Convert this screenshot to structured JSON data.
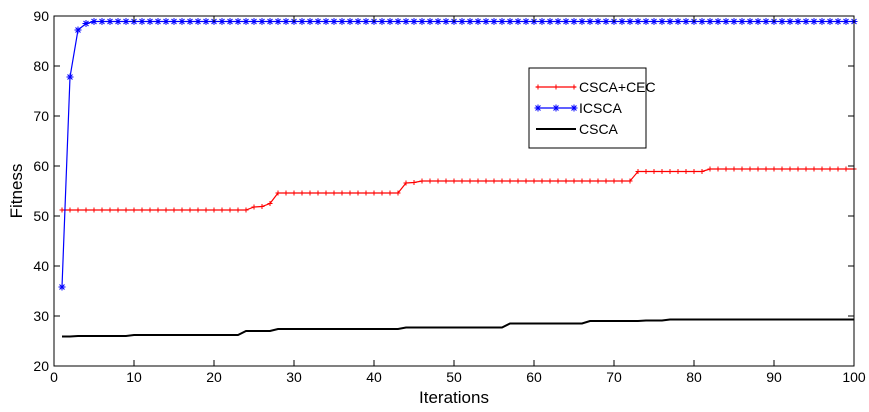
{
  "chart_data": {
    "type": "line",
    "title": "",
    "xlabel": "Iterations",
    "ylabel": "Fitness",
    "xlim": [
      0,
      100
    ],
    "ylim": [
      20,
      90
    ],
    "xticks": [
      "0",
      "10",
      "20",
      "30",
      "40",
      "50",
      "60",
      "70",
      "80",
      "90",
      "100"
    ],
    "yticks": [
      "20",
      "30",
      "40",
      "50",
      "60",
      "70",
      "80",
      "90"
    ],
    "grid": false,
    "legend_position": "top-right",
    "series": [
      {
        "name": "CSCA+CEC",
        "color": "#ff0000",
        "marker": "plus",
        "steps": [
          [
            1,
            51.2
          ],
          [
            24,
            51.2
          ],
          [
            25,
            51.8
          ],
          [
            26,
            51.9
          ],
          [
            27,
            52.5
          ],
          [
            28,
            54.6
          ],
          [
            43,
            54.6
          ],
          [
            44,
            56.6
          ],
          [
            45,
            56.7
          ],
          [
            46,
            57.0
          ],
          [
            72,
            57.0
          ],
          [
            73,
            58.9
          ],
          [
            81,
            58.9
          ],
          [
            82,
            59.4
          ],
          [
            100,
            59.4
          ]
        ]
      },
      {
        "name": "ICSCA",
        "color": "#0000ff",
        "marker": "star",
        "steps": [
          [
            1,
            35.8
          ],
          [
            2,
            77.8
          ],
          [
            3,
            87.2
          ],
          [
            4,
            88.5
          ],
          [
            5,
            88.9
          ],
          [
            100,
            88.9
          ]
        ]
      },
      {
        "name": "CSCA",
        "color": "#000000",
        "marker": "none",
        "steps": [
          [
            1,
            25.9
          ],
          [
            2,
            25.9
          ],
          [
            3,
            26.0
          ],
          [
            9,
            26.0
          ],
          [
            10,
            26.2
          ],
          [
            23,
            26.2
          ],
          [
            24,
            27.0
          ],
          [
            27,
            27.0
          ],
          [
            28,
            27.4
          ],
          [
            43,
            27.4
          ],
          [
            44,
            27.7
          ],
          [
            56,
            27.7
          ],
          [
            57,
            28.5
          ],
          [
            66,
            28.5
          ],
          [
            67,
            29.0
          ],
          [
            74,
            29.1
          ],
          [
            77,
            29.3
          ],
          [
            100,
            29.3
          ]
        ]
      }
    ]
  }
}
